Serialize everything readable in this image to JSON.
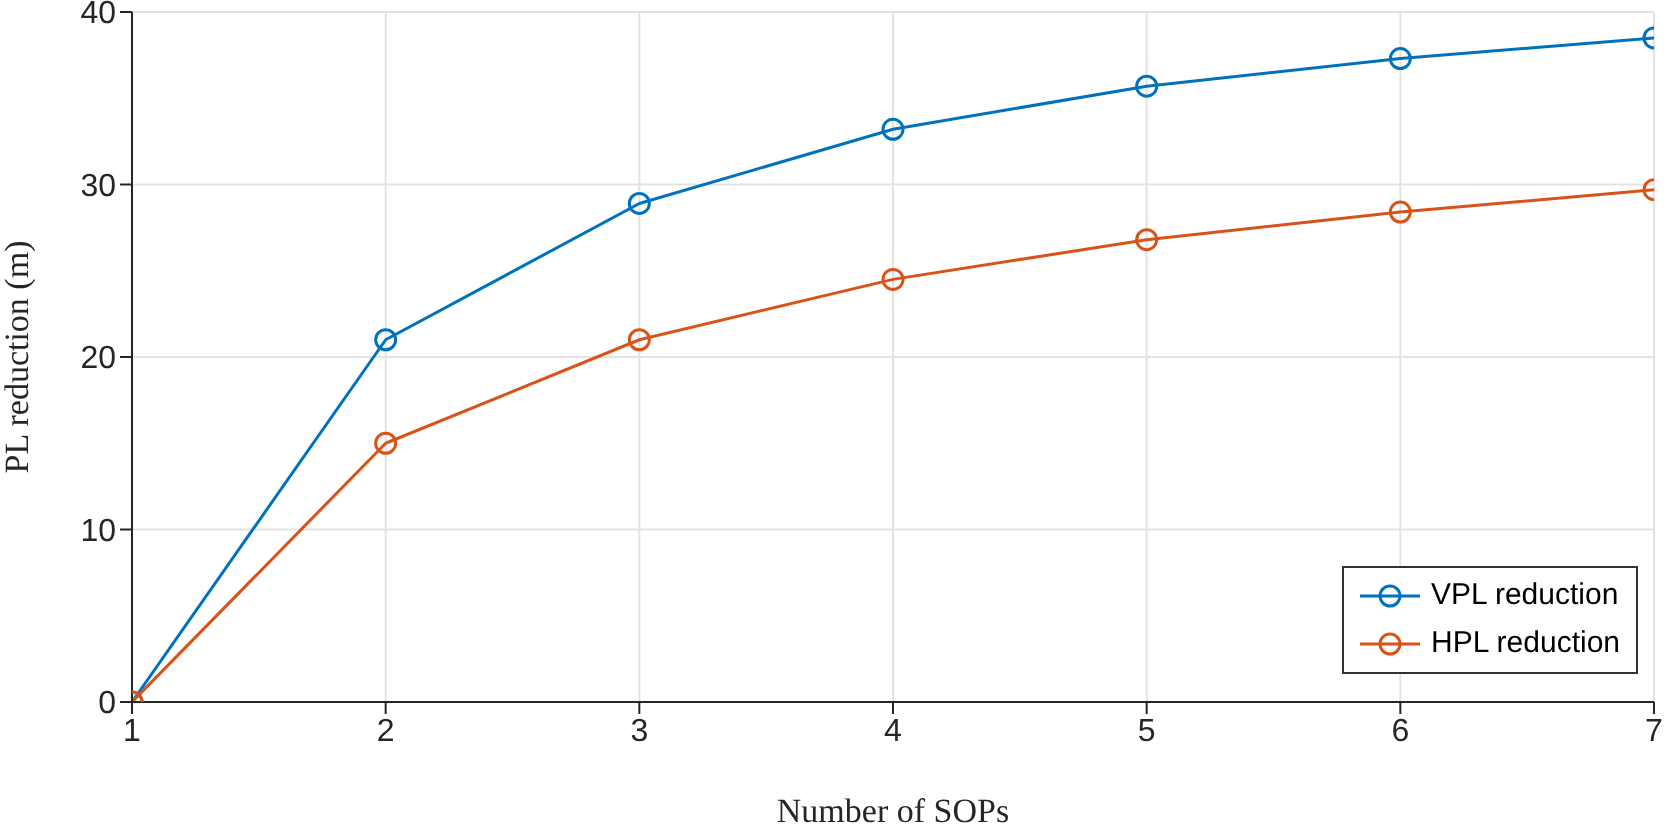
{
  "chart_data": {
    "type": "line",
    "xlabel": "Number of SOPs",
    "ylabel": "PL reduction (m)",
    "x": [
      1,
      2,
      3,
      4,
      5,
      6,
      7
    ],
    "series": [
      {
        "name": "VPL reduction",
        "color": "#0072bd",
        "values": [
          0,
          21,
          28.9,
          33.2,
          35.7,
          37.3,
          38.5
        ]
      },
      {
        "name": "HPL reduction",
        "color": "#d95319",
        "values": [
          0,
          15,
          21,
          24.5,
          26.8,
          28.4,
          29.7
        ]
      }
    ],
    "xlim": [
      1,
      7
    ],
    "xticks": [
      1,
      2,
      3,
      4,
      5,
      6,
      7
    ],
    "ylim": [
      0,
      40
    ],
    "yticks": [
      0,
      10,
      20,
      30,
      40
    ],
    "grid": true,
    "legend": "bottom right",
    "marker": "circle",
    "line_style": "solid"
  }
}
